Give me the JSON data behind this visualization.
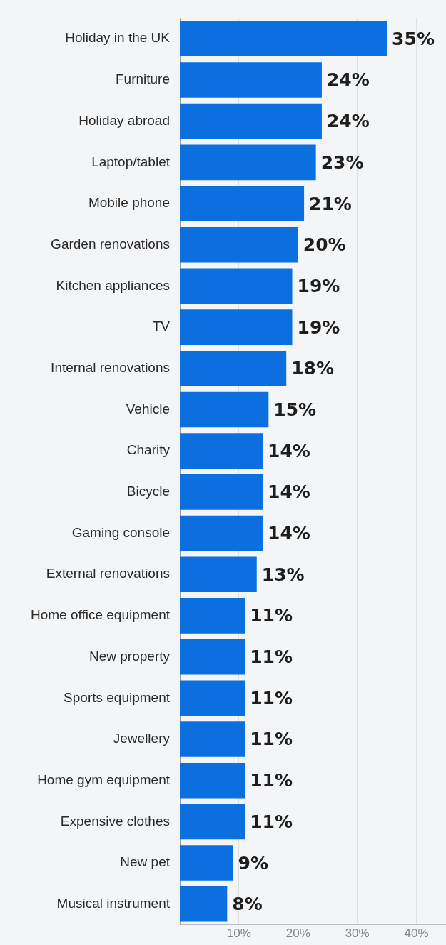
{
  "chart_data": {
    "type": "bar",
    "orientation": "horizontal",
    "categories": [
      "Holiday in the UK",
      "Furniture",
      "Holiday abroad",
      "Laptop/tablet",
      "Mobile phone",
      "Garden renovations",
      "Kitchen appliances",
      "TV",
      "Internal renovations",
      "Vehicle",
      "Charity",
      "Bicycle",
      "Gaming console",
      "External renovations",
      "Home office equipment",
      "New property",
      "Sports equipment",
      "Jewellery",
      "Home gym equipment",
      "Expensive clothes",
      "New pet",
      "Musical instrument"
    ],
    "values": [
      35,
      24,
      24,
      23,
      21,
      20,
      19,
      19,
      18,
      15,
      14,
      14,
      14,
      13,
      11,
      11,
      11,
      11,
      11,
      11,
      9,
      8
    ],
    "value_labels": [
      "35%",
      "24%",
      "24%",
      "23%",
      "21%",
      "20%",
      "19%",
      "19%",
      "18%",
      "15%",
      "14%",
      "14%",
      "14%",
      "13%",
      "11%",
      "11%",
      "11%",
      "11%",
      "11%",
      "11%",
      "9%",
      "8%"
    ],
    "color": "#0b6fe0",
    "xlim": [
      0,
      45
    ],
    "xticks": [
      {
        "value": 10,
        "label": "10%"
      },
      {
        "value": 20,
        "label": "20%"
      },
      {
        "value": 30,
        "label": "30%"
      },
      {
        "value": 40,
        "label": "40%"
      }
    ],
    "grid": "x"
  }
}
